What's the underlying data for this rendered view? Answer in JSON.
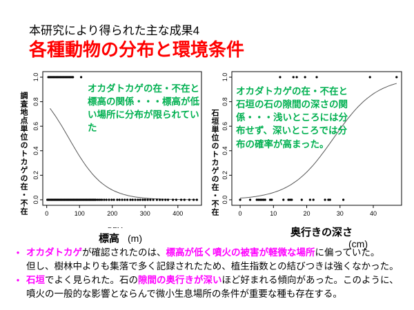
{
  "slide": {
    "title_line1": "本研究により得られた主な成果4",
    "title_line2": "各種動物の分布と環境条件",
    "colors": {
      "title_red": "#FF0000",
      "annotation_green": "#00B050",
      "highlight_magenta": "#FF00FF",
      "curve_gray": "#555555",
      "point_black": "#000000"
    }
  },
  "chart_data": [
    {
      "type": "scatter",
      "ylabel": "調査地点単位のトカゲの在・不在",
      "xlabel_original": "DEM",
      "xlabel": "標高",
      "xlabel_unit": "(m)",
      "x_ticks": [
        0,
        100,
        200,
        300,
        400
      ],
      "y_ticks": [
        "0.0",
        "0.2",
        "0.4",
        "0.6",
        "0.8",
        "1.0"
      ],
      "x_range": [
        -12,
        472
      ],
      "y_range": [
        -0.045,
        1.045
      ],
      "presence_x": [
        5,
        9,
        13,
        17,
        21,
        25,
        29,
        33,
        37,
        41,
        45,
        49,
        53,
        57,
        61,
        65,
        69,
        73,
        77,
        80,
        105
      ],
      "absence_x": [
        2,
        6,
        10,
        14,
        18,
        22,
        26,
        30,
        34,
        38,
        42,
        46,
        50,
        54,
        58,
        62,
        66,
        70,
        74,
        78,
        82,
        86,
        90,
        94,
        98,
        102,
        106,
        110,
        114,
        118,
        122,
        126,
        130,
        134,
        138,
        142,
        146,
        150,
        156,
        162,
        168,
        175,
        182,
        190,
        198,
        205,
        215,
        222,
        230,
        238,
        246,
        255,
        262,
        270,
        278,
        285,
        293,
        300,
        308,
        316,
        325,
        336,
        345,
        353,
        362,
        370,
        385,
        395,
        410,
        420,
        435,
        448,
        458
      ],
      "curve": {
        "model": "logistic",
        "direction": "decreasing",
        "midpoint": 68,
        "scale": 54,
        "x_start": 10,
        "x_end": 460
      },
      "annotation": "オカダトカゲの在・不在と標高の関係・・・標高が低い場所に分布が限られていた"
    },
    {
      "type": "scatter",
      "ylabel": "石垣単位のトカゲの在・不在",
      "xlabel": "奥行きの深さ",
      "xlabel_unit": "(cm)",
      "x_ticks": [
        0,
        10,
        20,
        30,
        40
      ],
      "y_ticks": [
        "0.0",
        "0.2",
        "0.4",
        "0.6",
        "0.8",
        "1.0"
      ],
      "x_range": [
        -2.5,
        48.5
      ],
      "y_range": [
        -0.045,
        1.045
      ],
      "presence_x": [
        12,
        16,
        17,
        19.5,
        23,
        39,
        47
      ],
      "absence_x": [
        0,
        3,
        5,
        5.5,
        6,
        6.5,
        7,
        7.5,
        9,
        9.5,
        13,
        14.5,
        15,
        15.5,
        18.5,
        21,
        22,
        25.5,
        26.5,
        27,
        31
      ],
      "curve": {
        "model": "logistic",
        "direction": "increasing",
        "midpoint": 28,
        "scale": 6.5,
        "x_start": 0,
        "x_end": 47
      },
      "annotation": "オカダトカゲの在・不在と石垣の石の隙間の深さの関係・・・浅いところには分布せず、深いところでは分布の確率が高まった。"
    }
  ],
  "bullets": [
    {
      "marker": true,
      "segments": [
        {
          "text": "オカダトカゲ",
          "highlight": true
        },
        {
          "text": "が確認されたのは、",
          "highlight": false
        },
        {
          "text": "標高が低く噴火の被害が軽微な場所",
          "highlight": true
        },
        {
          "text": "に偏っていた。",
          "highlight": false
        }
      ]
    },
    {
      "marker": false,
      "segments": [
        {
          "text": "但し、樹林中よりも集落で多く記録されたため、植生指数との結びつきは強くなかった。",
          "highlight": false
        }
      ]
    },
    {
      "marker": true,
      "segments": [
        {
          "text": "石垣",
          "highlight": true
        },
        {
          "text": "でよく見られた。石の",
          "highlight": false
        },
        {
          "text": "隙間の奥行きが深い",
          "highlight": true
        },
        {
          "text": "ほど好まれる傾向があった。このように、",
          "highlight": false
        }
      ]
    },
    {
      "marker": false,
      "segments": [
        {
          "text": "噴火の一般的な影響とならんで微小生息場所の条件が重要な種も存在する。",
          "highlight": false
        }
      ]
    }
  ]
}
